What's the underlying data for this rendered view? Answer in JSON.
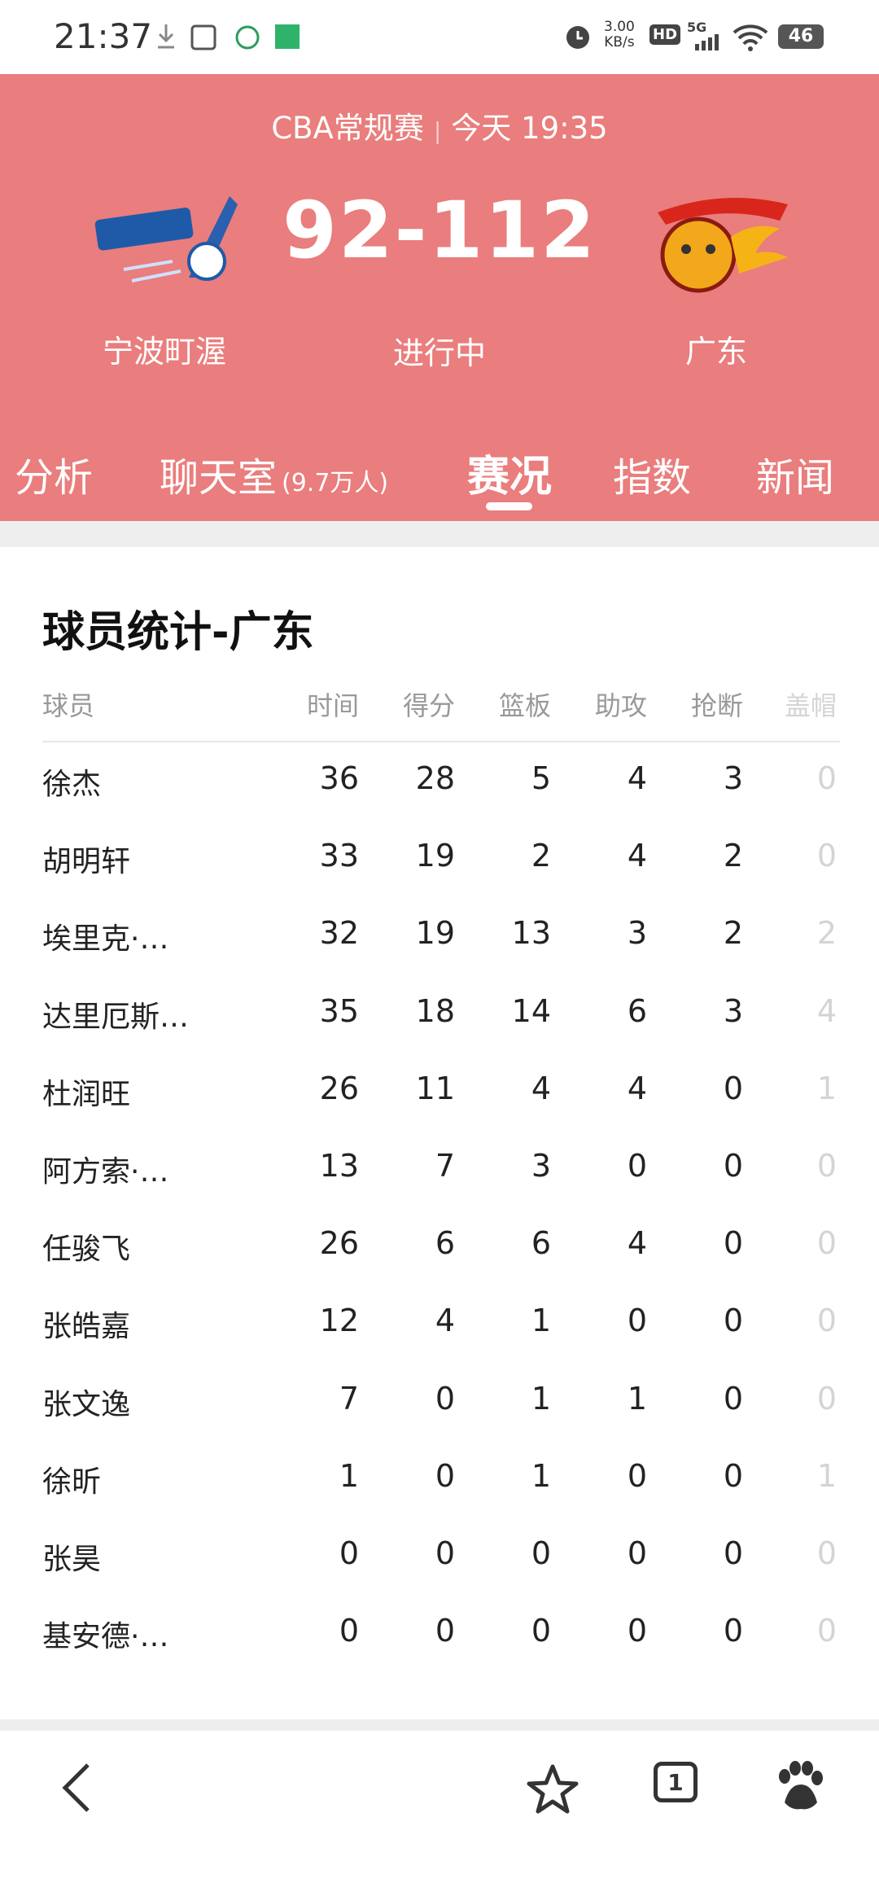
{
  "status_bar": {
    "time": "21:37",
    "speed": "3.00",
    "speed_unit": "KB/s",
    "hd": "HD",
    "network": "5G",
    "battery": "46"
  },
  "match": {
    "league": "CBA常规赛",
    "start": "今天 19:35",
    "score": "92-112",
    "home_team": "宁波町渥",
    "state": "进行中",
    "away_team": "广东"
  },
  "tabs": {
    "items": [
      "分析",
      "聊天室",
      "赛况",
      "指数",
      "新闻"
    ],
    "chat_count": "(9.7万人)"
  },
  "table": {
    "title": "球员统计-广东",
    "columns": [
      "球员",
      "时间",
      "得分",
      "篮板",
      "助攻",
      "抢断",
      "盖帽"
    ],
    "rows": [
      [
        "徐杰",
        36,
        28,
        5,
        4,
        3,
        0
      ],
      [
        "胡明轩",
        33,
        19,
        2,
        4,
        2,
        0
      ],
      [
        "埃里克·…",
        32,
        19,
        13,
        3,
        2,
        2
      ],
      [
        "达里厄斯…",
        35,
        18,
        14,
        6,
        3,
        4
      ],
      [
        "杜润旺",
        26,
        11,
        4,
        4,
        0,
        1
      ],
      [
        "阿方索·…",
        13,
        7,
        3,
        0,
        0,
        0
      ],
      [
        "任骏飞",
        26,
        6,
        6,
        4,
        0,
        0
      ],
      [
        "张皓嘉",
        12,
        4,
        1,
        0,
        0,
        0
      ],
      [
        "张文逸",
        7,
        0,
        1,
        1,
        0,
        0
      ],
      [
        "徐昕",
        1,
        0,
        1,
        0,
        0,
        1
      ],
      [
        "张昊",
        0,
        0,
        0,
        0,
        0,
        0
      ],
      [
        "基安德·…",
        0,
        0,
        0,
        0,
        0,
        0
      ]
    ]
  },
  "bottom_nav": {
    "tab_count": "1"
  }
}
